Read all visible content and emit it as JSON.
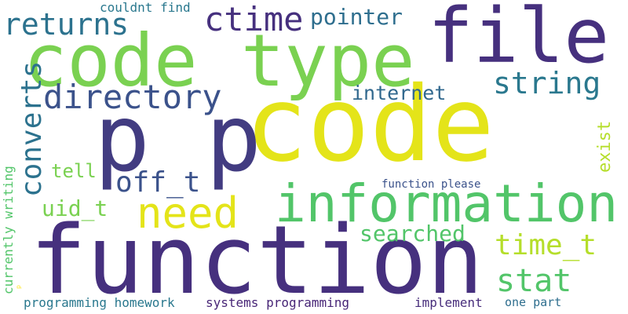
{
  "words": [
    {
      "text": "code",
      "color": "#e4e419"
    },
    {
      "text": "function",
      "color": "#46307e"
    },
    {
      "text": "p p",
      "color": "#423c81"
    },
    {
      "text": "code type",
      "color": "#7ad151"
    },
    {
      "text": "file",
      "color": "#46307e"
    },
    {
      "text": "information",
      "color": "#52c569"
    },
    {
      "text": "need",
      "color": "#e4e419"
    },
    {
      "text": "directory",
      "color": "#3b528b"
    },
    {
      "text": "string",
      "color": "#2a788e"
    },
    {
      "text": "ctime",
      "color": "#46307e"
    },
    {
      "text": "time_t",
      "color": "#b5de2b"
    },
    {
      "text": "returns",
      "color": "#2c728e"
    },
    {
      "text": "stat",
      "color": "#52c569"
    },
    {
      "text": "off_t",
      "color": "#3b528b"
    },
    {
      "text": "searched",
      "color": "#52c569"
    },
    {
      "text": "pointer",
      "color": "#2e6e8e"
    },
    {
      "text": "uid_t",
      "color": "#7ad151"
    },
    {
      "text": "internet",
      "color": "#31688e"
    },
    {
      "text": "tell",
      "color": "#7ad151"
    },
    {
      "text": "couldnt find",
      "color": "#2a788e"
    },
    {
      "text": "function please",
      "color": "#3b528b"
    },
    {
      "text": "programming homework",
      "color": "#2a788e"
    },
    {
      "text": "systems programming",
      "color": "#482677"
    },
    {
      "text": "implement",
      "color": "#472d7b"
    },
    {
      "text": "one part",
      "color": "#2e6e8e"
    },
    {
      "text": "converts",
      "color": "#2c728e"
    },
    {
      "text": "exist",
      "color": "#b5de2b"
    },
    {
      "text": "currently writing",
      "color": "#52c569"
    },
    {
      "text": "p",
      "color": "#fde725"
    }
  ]
}
